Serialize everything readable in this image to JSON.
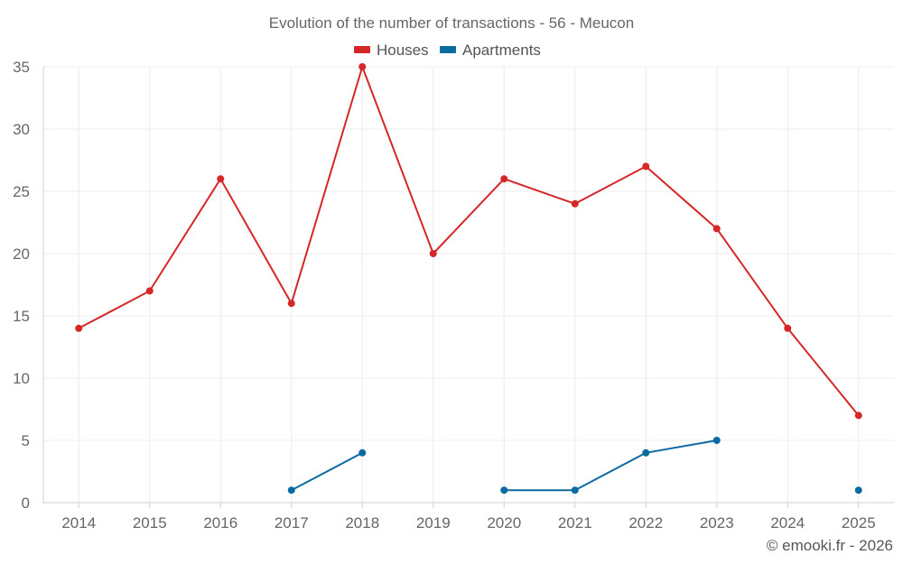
{
  "chart_data": {
    "type": "line",
    "title": "Evolution of the number of transactions - 56 - Meucon",
    "x": [
      "2014",
      "2015",
      "2016",
      "2017",
      "2018",
      "2019",
      "2020",
      "2021",
      "2022",
      "2023",
      "2024",
      "2025"
    ],
    "ylim": [
      0,
      35
    ],
    "yticks": [
      0,
      5,
      10,
      15,
      20,
      25,
      30,
      35
    ],
    "grid": true,
    "legend_position": "top-center",
    "series": [
      {
        "name": "Houses",
        "color": "#d62728",
        "values": [
          14,
          17,
          26,
          16,
          35,
          20,
          26,
          24,
          27,
          22,
          14,
          7
        ]
      },
      {
        "name": "Apartments",
        "color": "#0a6aa1",
        "values": [
          null,
          null,
          null,
          1,
          4,
          null,
          1,
          1,
          4,
          5,
          null,
          1
        ]
      }
    ]
  },
  "footer": {
    "credit": "© emooki.fr - 2026"
  }
}
